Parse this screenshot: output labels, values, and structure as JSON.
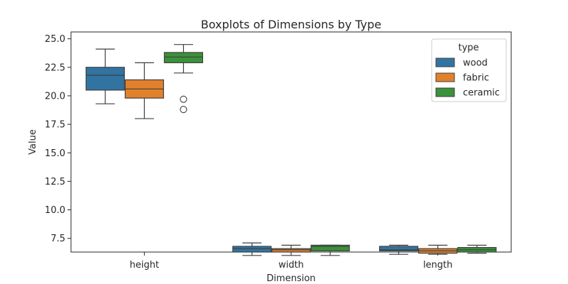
{
  "chart_data": {
    "type": "boxplot",
    "title": "Boxplots of Dimensions by Type",
    "xlabel": "Dimension",
    "ylabel": "Value",
    "categories": [
      "height",
      "width",
      "length"
    ],
    "ylim": [
      6.3,
      25.6
    ],
    "yticks": [
      7.5,
      10.0,
      12.5,
      15.0,
      17.5,
      20.0,
      22.5,
      25.0
    ],
    "ytick_labels": [
      "7.5",
      "10.0",
      "12.5",
      "15.0",
      "17.5",
      "20.0",
      "22.5",
      "25.0"
    ],
    "legend": {
      "title": "type",
      "position": "top-right"
    },
    "series": [
      {
        "name": "wood",
        "color": "#3274a1",
        "boxes": [
          {
            "whisker_low": 19.3,
            "q1": 20.5,
            "median": 21.8,
            "q3": 22.5,
            "whisker_high": 24.1,
            "outliers": []
          },
          {
            "whisker_low": 6.0,
            "q1": 6.3,
            "median": 6.6,
            "q3": 6.8,
            "whisker_high": 7.1,
            "outliers": []
          },
          {
            "whisker_low": 6.1,
            "q1": 6.4,
            "median": 6.5,
            "q3": 6.8,
            "whisker_high": 6.9,
            "outliers": []
          }
        ]
      },
      {
        "name": "fabric",
        "color": "#e1812c",
        "boxes": [
          {
            "whisker_low": 18.0,
            "q1": 19.8,
            "median": 20.6,
            "q3": 21.4,
            "whisker_high": 22.9,
            "outliers": []
          },
          {
            "whisker_low": 6.0,
            "q1": 6.3,
            "median": 6.5,
            "q3": 6.6,
            "whisker_high": 6.9,
            "outliers": []
          },
          {
            "whisker_low": 6.1,
            "q1": 6.2,
            "median": 6.4,
            "q3": 6.6,
            "whisker_high": 6.9,
            "outliers": []
          }
        ]
      },
      {
        "name": "ceramic",
        "color": "#3a923a",
        "boxes": [
          {
            "whisker_low": 22.0,
            "q1": 22.9,
            "median": 23.4,
            "q3": 23.8,
            "whisker_high": 24.5,
            "outliers": [
              19.7,
              18.8
            ]
          },
          {
            "whisker_low": 6.0,
            "q1": 6.4,
            "median": 6.8,
            "q3": 6.9,
            "whisker_high": 6.9,
            "outliers": []
          },
          {
            "whisker_low": 6.2,
            "q1": 6.3,
            "median": 6.5,
            "q3": 6.7,
            "whisker_high": 6.9,
            "outliers": []
          }
        ]
      }
    ]
  }
}
